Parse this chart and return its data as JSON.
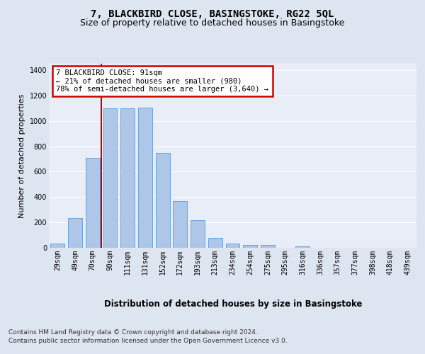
{
  "title": "7, BLACKBIRD CLOSE, BASINGSTOKE, RG22 5QL",
  "subtitle": "Size of property relative to detached houses in Basingstoke",
  "xlabel": "Distribution of detached houses by size in Basingstoke",
  "ylabel": "Number of detached properties",
  "categories": [
    "29sqm",
    "49sqm",
    "70sqm",
    "90sqm",
    "111sqm",
    "131sqm",
    "152sqm",
    "172sqm",
    "193sqm",
    "213sqm",
    "234sqm",
    "254sqm",
    "275sqm",
    "295sqm",
    "316sqm",
    "336sqm",
    "357sqm",
    "377sqm",
    "398sqm",
    "418sqm",
    "439sqm"
  ],
  "values": [
    32,
    235,
    710,
    1100,
    1100,
    1105,
    745,
    370,
    220,
    80,
    32,
    22,
    20,
    0,
    12,
    0,
    0,
    0,
    0,
    0,
    0
  ],
  "bar_color": "#aec6e8",
  "bar_edge_color": "#5b9bd5",
  "bar_width": 0.8,
  "vline_color": "#cc0000",
  "annotation_text": "7 BLACKBIRD CLOSE: 91sqm\n← 21% of detached houses are smaller (980)\n78% of semi-detached houses are larger (3,640) →",
  "annotation_box_color": "#cc0000",
  "annotation_bg": "#ffffff",
  "ylim": [
    0,
    1450
  ],
  "yticks": [
    0,
    200,
    400,
    600,
    800,
    1000,
    1200,
    1400
  ],
  "bg_color": "#dde5f0",
  "plot_bg_color": "#e8edf7",
  "grid_color": "#ffffff",
  "footer_line1": "Contains HM Land Registry data © Crown copyright and database right 2024.",
  "footer_line2": "Contains public sector information licensed under the Open Government Licence v3.0.",
  "title_fontsize": 10,
  "subtitle_fontsize": 9,
  "xlabel_fontsize": 8.5,
  "ylabel_fontsize": 8,
  "tick_fontsize": 7,
  "footer_fontsize": 6.5
}
